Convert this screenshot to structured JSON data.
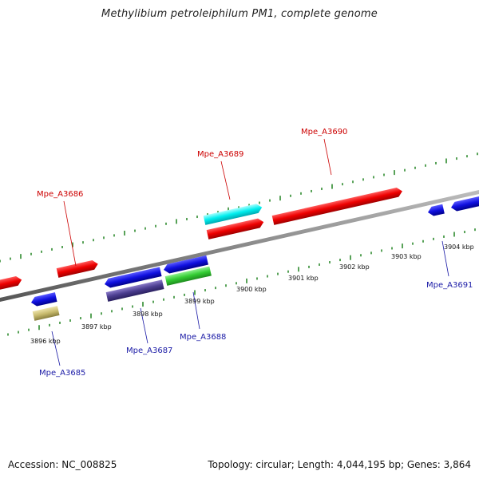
{
  "title": "Methylibium petroleiphilum PM1, complete genome",
  "accession": "Accession: NC_008825",
  "summary": "Topology: circular; Length: 4,044,195 bp; Genes: 3,864",
  "colors": {
    "backbone": "#7f7f7f",
    "tick": "#2e8b2e",
    "forward_label": "#cc0000",
    "reverse_label": "#1a1aa6"
  },
  "kbp_labels": [
    "3896 kbp",
    "3897 kbp",
    "3898 kbp",
    "3899 kbp",
    "3900 kbp",
    "3901 kbp",
    "3902 kbp",
    "3903 kbp",
    "3904 kbp"
  ],
  "gene_labels": [
    "Mpe_A3685",
    "Mpe_A3686",
    "Mpe_A3687",
    "Mpe_A3688",
    "Mpe_A3689",
    "Mpe_A3690",
    "Mpe_A3691"
  ]
}
